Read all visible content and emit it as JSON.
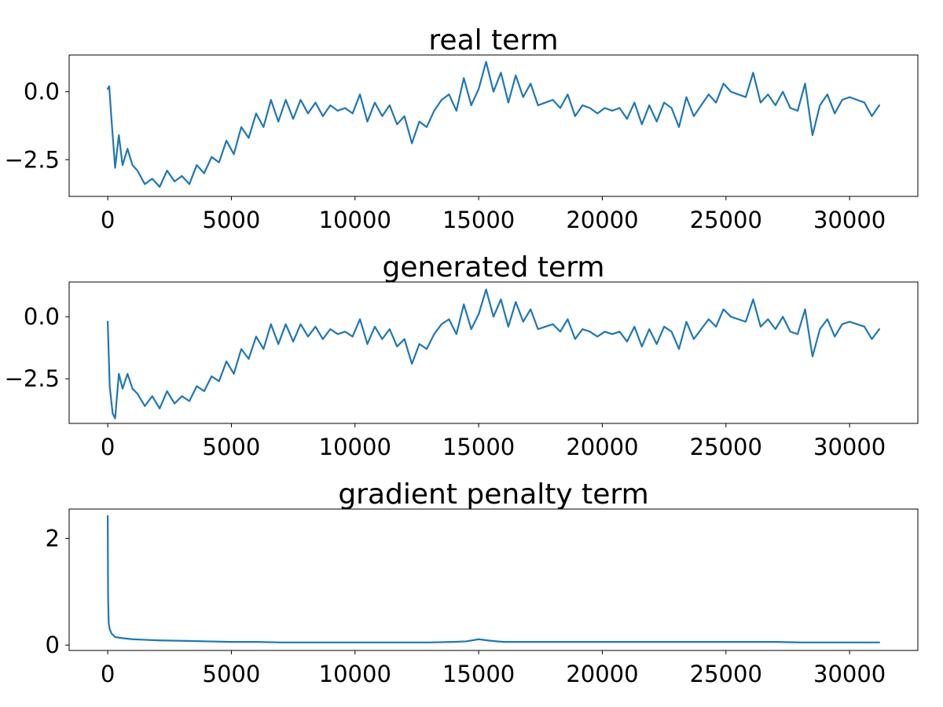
{
  "chart_data": [
    {
      "type": "line",
      "title": "real term",
      "xlabel": "",
      "ylabel": "",
      "xlim": [
        -1560,
        32760
      ],
      "ylim": [
        -3.85,
        1.35
      ],
      "xticks": [
        0,
        5000,
        10000,
        15000,
        20000,
        25000,
        30000
      ],
      "xtick_labels": [
        "0",
        "5000",
        "10000",
        "15000",
        "20000",
        "25000",
        "30000"
      ],
      "yticks": [
        0.0,
        -2.5
      ],
      "ytick_labels": [
        "0.0",
        "−2.5"
      ],
      "grid": false,
      "color": "#1f77b4",
      "series": [
        {
          "x": [
            0,
            60,
            150,
            300,
            450,
            600,
            800,
            1000,
            1200,
            1500,
            1800,
            2100,
            2400,
            2700,
            3000,
            3300,
            3600,
            3900,
            4200,
            4500,
            4800,
            5100,
            5400,
            5700,
            6000,
            6300,
            6600,
            6900,
            7200,
            7500,
            7800,
            8100,
            8400,
            8700,
            9000,
            9300,
            9600,
            9900,
            10200,
            10500,
            10800,
            11100,
            11400,
            11700,
            12000,
            12300,
            12600,
            12900,
            13200,
            13500,
            13800,
            14100,
            14400,
            14700,
            15000,
            15300,
            15600,
            15900,
            16200,
            16500,
            16800,
            17100,
            17400,
            17700,
            18000,
            18300,
            18600,
            18900,
            19200,
            19500,
            19800,
            20100,
            20400,
            20700,
            21000,
            21300,
            21600,
            21900,
            22200,
            22500,
            22800,
            23100,
            23400,
            23700,
            24000,
            24300,
            24600,
            24900,
            25200,
            25500,
            25800,
            26100,
            26400,
            26700,
            27000,
            27300,
            27600,
            27900,
            28200,
            28500,
            28800,
            29100,
            29400,
            29700,
            30000,
            30300,
            30600,
            30900,
            31200
          ],
          "y": [
            0.1,
            0.2,
            -1.0,
            -2.8,
            -1.6,
            -2.7,
            -2.1,
            -2.7,
            -2.9,
            -3.4,
            -3.2,
            -3.5,
            -2.9,
            -3.3,
            -3.1,
            -3.4,
            -2.7,
            -3.0,
            -2.4,
            -2.6,
            -1.8,
            -2.3,
            -1.3,
            -1.7,
            -0.8,
            -1.3,
            -0.3,
            -1.1,
            -0.3,
            -1.0,
            -0.3,
            -0.8,
            -0.4,
            -0.9,
            -0.5,
            -0.7,
            -0.6,
            -0.8,
            -0.1,
            -1.1,
            -0.4,
            -0.9,
            -0.5,
            -1.2,
            -0.9,
            -1.9,
            -1.1,
            -1.3,
            -0.7,
            -0.3,
            -0.1,
            -0.7,
            0.5,
            -0.5,
            0.1,
            1.1,
            0.0,
            0.7,
            -0.4,
            0.6,
            -0.2,
            0.3,
            -0.5,
            -0.4,
            -0.3,
            -0.6,
            -0.1,
            -0.9,
            -0.5,
            -0.6,
            -0.8,
            -0.6,
            -0.7,
            -0.6,
            -1.0,
            -0.4,
            -1.2,
            -0.5,
            -1.1,
            -0.4,
            -0.6,
            -1.3,
            -0.2,
            -0.9,
            -0.5,
            -0.1,
            -0.4,
            0.3,
            0.0,
            -0.1,
            -0.2,
            0.7,
            -0.4,
            -0.1,
            -0.5,
            0.0,
            -0.6,
            -0.7,
            0.3,
            -1.6,
            -0.5,
            -0.1,
            -0.8,
            -0.3,
            -0.2,
            -0.3,
            -0.4,
            -0.9,
            -0.5
          ]
        }
      ]
    },
    {
      "type": "line",
      "title": "generated term",
      "xlabel": "",
      "ylabel": "",
      "xlim": [
        -1560,
        32760
      ],
      "ylim": [
        -4.3,
        1.4
      ],
      "xticks": [
        0,
        5000,
        10000,
        15000,
        20000,
        25000,
        30000
      ],
      "xtick_labels": [
        "0",
        "5000",
        "10000",
        "15000",
        "20000",
        "25000",
        "30000"
      ],
      "yticks": [
        0.0,
        -2.5
      ],
      "ytick_labels": [
        "0.0",
        "−2.5"
      ],
      "grid": false,
      "color": "#1f77b4",
      "series": [
        {
          "x": [
            0,
            80,
            200,
            300,
            450,
            600,
            800,
            1000,
            1200,
            1500,
            1800,
            2100,
            2400,
            2700,
            3000,
            3300,
            3600,
            3900,
            4200,
            4500,
            4800,
            5100,
            5400,
            5700,
            6000,
            6300,
            6600,
            6900,
            7200,
            7500,
            7800,
            8100,
            8400,
            8700,
            9000,
            9300,
            9600,
            9900,
            10200,
            10500,
            10800,
            11100,
            11400,
            11700,
            12000,
            12300,
            12600,
            12900,
            13200,
            13500,
            13800,
            14100,
            14400,
            14700,
            15000,
            15300,
            15600,
            15900,
            16200,
            16500,
            16800,
            17100,
            17400,
            17700,
            18000,
            18300,
            18600,
            18900,
            19200,
            19500,
            19800,
            20100,
            20400,
            20700,
            21000,
            21300,
            21600,
            21900,
            22200,
            22500,
            22800,
            23100,
            23400,
            23700,
            24000,
            24300,
            24600,
            24900,
            25200,
            25500,
            25800,
            26100,
            26400,
            26700,
            27000,
            27300,
            27600,
            27900,
            28200,
            28500,
            28800,
            29100,
            29400,
            29700,
            30000,
            30300,
            30600,
            30900,
            31200
          ],
          "y": [
            -0.2,
            -2.8,
            -3.9,
            -4.1,
            -2.3,
            -2.9,
            -2.3,
            -2.9,
            -3.1,
            -3.6,
            -3.2,
            -3.7,
            -3.0,
            -3.5,
            -3.2,
            -3.4,
            -2.8,
            -3.0,
            -2.4,
            -2.6,
            -1.8,
            -2.3,
            -1.3,
            -1.7,
            -0.8,
            -1.3,
            -0.3,
            -1.1,
            -0.3,
            -1.0,
            -0.3,
            -0.8,
            -0.4,
            -0.9,
            -0.5,
            -0.7,
            -0.6,
            -0.8,
            -0.1,
            -1.1,
            -0.4,
            -0.9,
            -0.5,
            -1.2,
            -0.9,
            -1.9,
            -1.1,
            -1.3,
            -0.7,
            -0.3,
            -0.1,
            -0.7,
            0.5,
            -0.5,
            0.1,
            1.1,
            0.0,
            0.7,
            -0.4,
            0.6,
            -0.2,
            0.3,
            -0.5,
            -0.4,
            -0.3,
            -0.6,
            -0.1,
            -0.9,
            -0.5,
            -0.6,
            -0.8,
            -0.6,
            -0.7,
            -0.6,
            -1.0,
            -0.4,
            -1.2,
            -0.5,
            -1.1,
            -0.4,
            -0.6,
            -1.3,
            -0.2,
            -0.9,
            -0.5,
            -0.1,
            -0.4,
            0.3,
            0.0,
            -0.1,
            -0.2,
            0.7,
            -0.4,
            -0.1,
            -0.5,
            0.0,
            -0.6,
            -0.7,
            0.3,
            -1.6,
            -0.5,
            -0.1,
            -0.8,
            -0.3,
            -0.2,
            -0.3,
            -0.4,
            -0.9,
            -0.5
          ]
        }
      ]
    },
    {
      "type": "line",
      "title": "gradient penalty term",
      "xlabel": "",
      "ylabel": "",
      "xlim": [
        -1560,
        32760
      ],
      "ylim": [
        -0.1,
        2.55
      ],
      "xticks": [
        0,
        5000,
        10000,
        15000,
        20000,
        25000,
        30000
      ],
      "xtick_labels": [
        "0",
        "5000",
        "10000",
        "15000",
        "20000",
        "25000",
        "30000"
      ],
      "yticks": [
        0,
        2
      ],
      "ytick_labels": [
        "0",
        "2"
      ],
      "grid": false,
      "color": "#1f77b4",
      "series": [
        {
          "x": [
            0,
            15,
            40,
            80,
            150,
            300,
            600,
            1000,
            1500,
            2000,
            3000,
            4000,
            5000,
            6000,
            7000,
            8000,
            9000,
            10000,
            11000,
            12000,
            12500,
            13000,
            14000,
            14500,
            15000,
            15500,
            16000,
            17000,
            18000,
            19000,
            20000,
            21000,
            22000,
            23000,
            24000,
            25000,
            26000,
            27000,
            28000,
            29000,
            30000,
            31200
          ],
          "y": [
            2.42,
            0.9,
            0.4,
            0.3,
            0.22,
            0.15,
            0.13,
            0.11,
            0.1,
            0.09,
            0.08,
            0.07,
            0.06,
            0.06,
            0.05,
            0.05,
            0.05,
            0.05,
            0.05,
            0.05,
            0.05,
            0.05,
            0.06,
            0.07,
            0.11,
            0.08,
            0.06,
            0.06,
            0.06,
            0.06,
            0.06,
            0.06,
            0.06,
            0.06,
            0.06,
            0.06,
            0.06,
            0.06,
            0.05,
            0.05,
            0.05,
            0.05
          ]
        }
      ]
    }
  ]
}
